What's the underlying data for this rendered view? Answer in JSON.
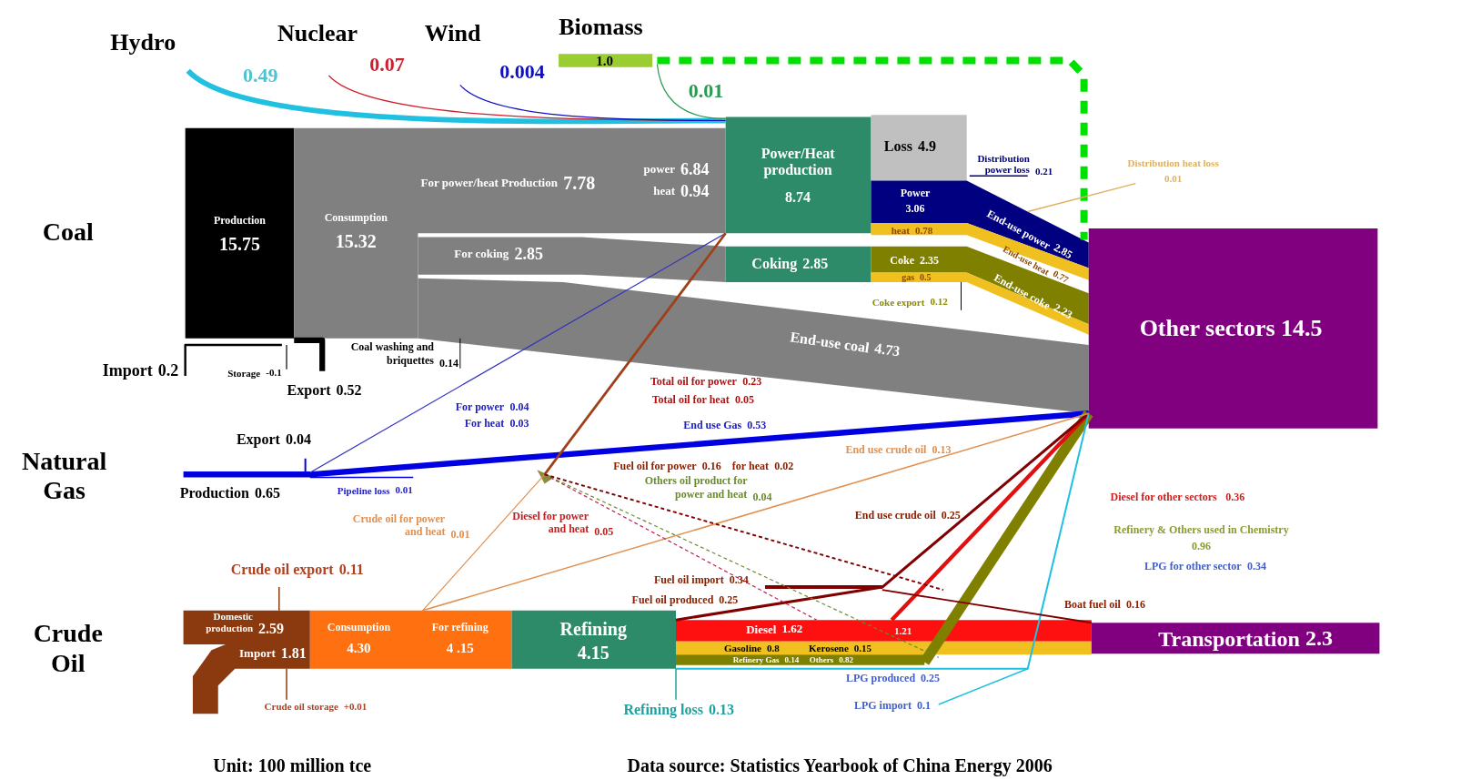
{
  "chart_data": {
    "type": "other",
    "annotations": [
      "0.01",
      "1.21",
      "Coal",
      "Natural\nGas",
      "Crude\nOil",
      "Unit: 100 million tce",
      "Data source: Statistics Yearbook of China Energy 2006"
    ],
    "categories": [
      "Hydro",
      "Nuclear",
      "Wind",
      "Biomass",
      "Production",
      "Consumption",
      "For power/heat Production",
      "power",
      "heat",
      "For coking",
      "Power/Heat\nproduction",
      "Loss",
      "Distribution\npower loss",
      "Distribution heat loss",
      "Power",
      "heat",
      "Coking",
      "Coke",
      "gas",
      "Coke export",
      "End-use power",
      "End-use heat",
      "End-use coke",
      "Other sectors",
      "End-use coal",
      "Coal washing and\nbriquettes",
      "Import",
      "Storage",
      "Export",
      "Total oil for power",
      "Total oil for heat",
      "For power",
      "For heat",
      "End use Gas",
      "Export",
      "Production",
      "Pipeline loss",
      "End use crude oil",
      "Fuel oil for power",
      "for heat",
      "Others oil product for\npower and heat",
      "Crude oil for power\nand heat",
      "Diesel for power\nand heat",
      "End use crude oil",
      "Diesel  for other sectors",
      "Refinery & Others used in Chemistry",
      "LPG for other sector",
      "Crude oil export",
      "Fuel oil import",
      "Fuel oil produced",
      "Boat fuel oil",
      "Domestic\nproduction",
      "Import",
      "Consumption",
      "For refining",
      "Refining",
      "Diesel",
      "Gasoline",
      "Kerosene",
      "Refinery Gas",
      "Others",
      "Transportation",
      "LPG produced",
      "LPG import",
      "Crude oil storage",
      "Refining loss"
    ],
    "values": [
      0.49,
      0.07,
      0.004,
      1.0,
      15.75,
      15.32,
      7.78,
      6.84,
      0.94,
      2.85,
      8.74,
      4.9,
      0.21,
      0.01,
      3.06,
      0.78,
      2.85,
      2.35,
      0.5,
      0.12,
      2.85,
      0.77,
      2.23,
      14.5,
      4.73,
      0.14,
      0.2,
      -0.1,
      0.52,
      0.23,
      0.05,
      0.04,
      0.03,
      0.53,
      0.04,
      0.65,
      0.01,
      0.13,
      0.16,
      0.02,
      0.04,
      0.01,
      0.05,
      0.25,
      0.36,
      0.96,
      0.34,
      0.11,
      0.34,
      0.25,
      0.16,
      2.59,
      1.81,
      4.3,
      4.15,
      4.15,
      1.62,
      0.8,
      0.15,
      0.14,
      0.82,
      2.3,
      0.25,
      0.1,
      0.01,
      0.13
    ],
    "value_labels": [
      "0.49",
      "0.07",
      "0.004",
      "1.0",
      "15.75",
      "15.32",
      "7.78",
      "6.84",
      "0.94",
      "2.85",
      "8.74",
      "4.9",
      "0.21",
      "0.01",
      "3.06",
      "0.78",
      "2.85",
      "2.35",
      "0.5",
      "0.12",
      "2.85",
      "0.77",
      "2.23",
      "14.5",
      "4.73",
      "0.14",
      "0.2",
      "-0.1",
      "0.52",
      "0.23",
      "0.05",
      "0.04",
      "0.03",
      "0.53",
      "0.04",
      "0.65",
      "0.01",
      "0.13",
      "0.16",
      "0.02",
      "0.04",
      "0.01",
      "0.05",
      "0.25",
      "0.36",
      "0.96",
      "0.34",
      "0.11",
      "0.34",
      "0.25",
      "0.16",
      "2.59",
      "1.81",
      "4.30",
      "4 .15",
      "4.15",
      "1.62",
      "0.8",
      "0.15",
      "0.14",
      "0.82",
      "2.3",
      "0.25",
      "0.1",
      "+0.01",
      "0.13"
    ]
  }
}
